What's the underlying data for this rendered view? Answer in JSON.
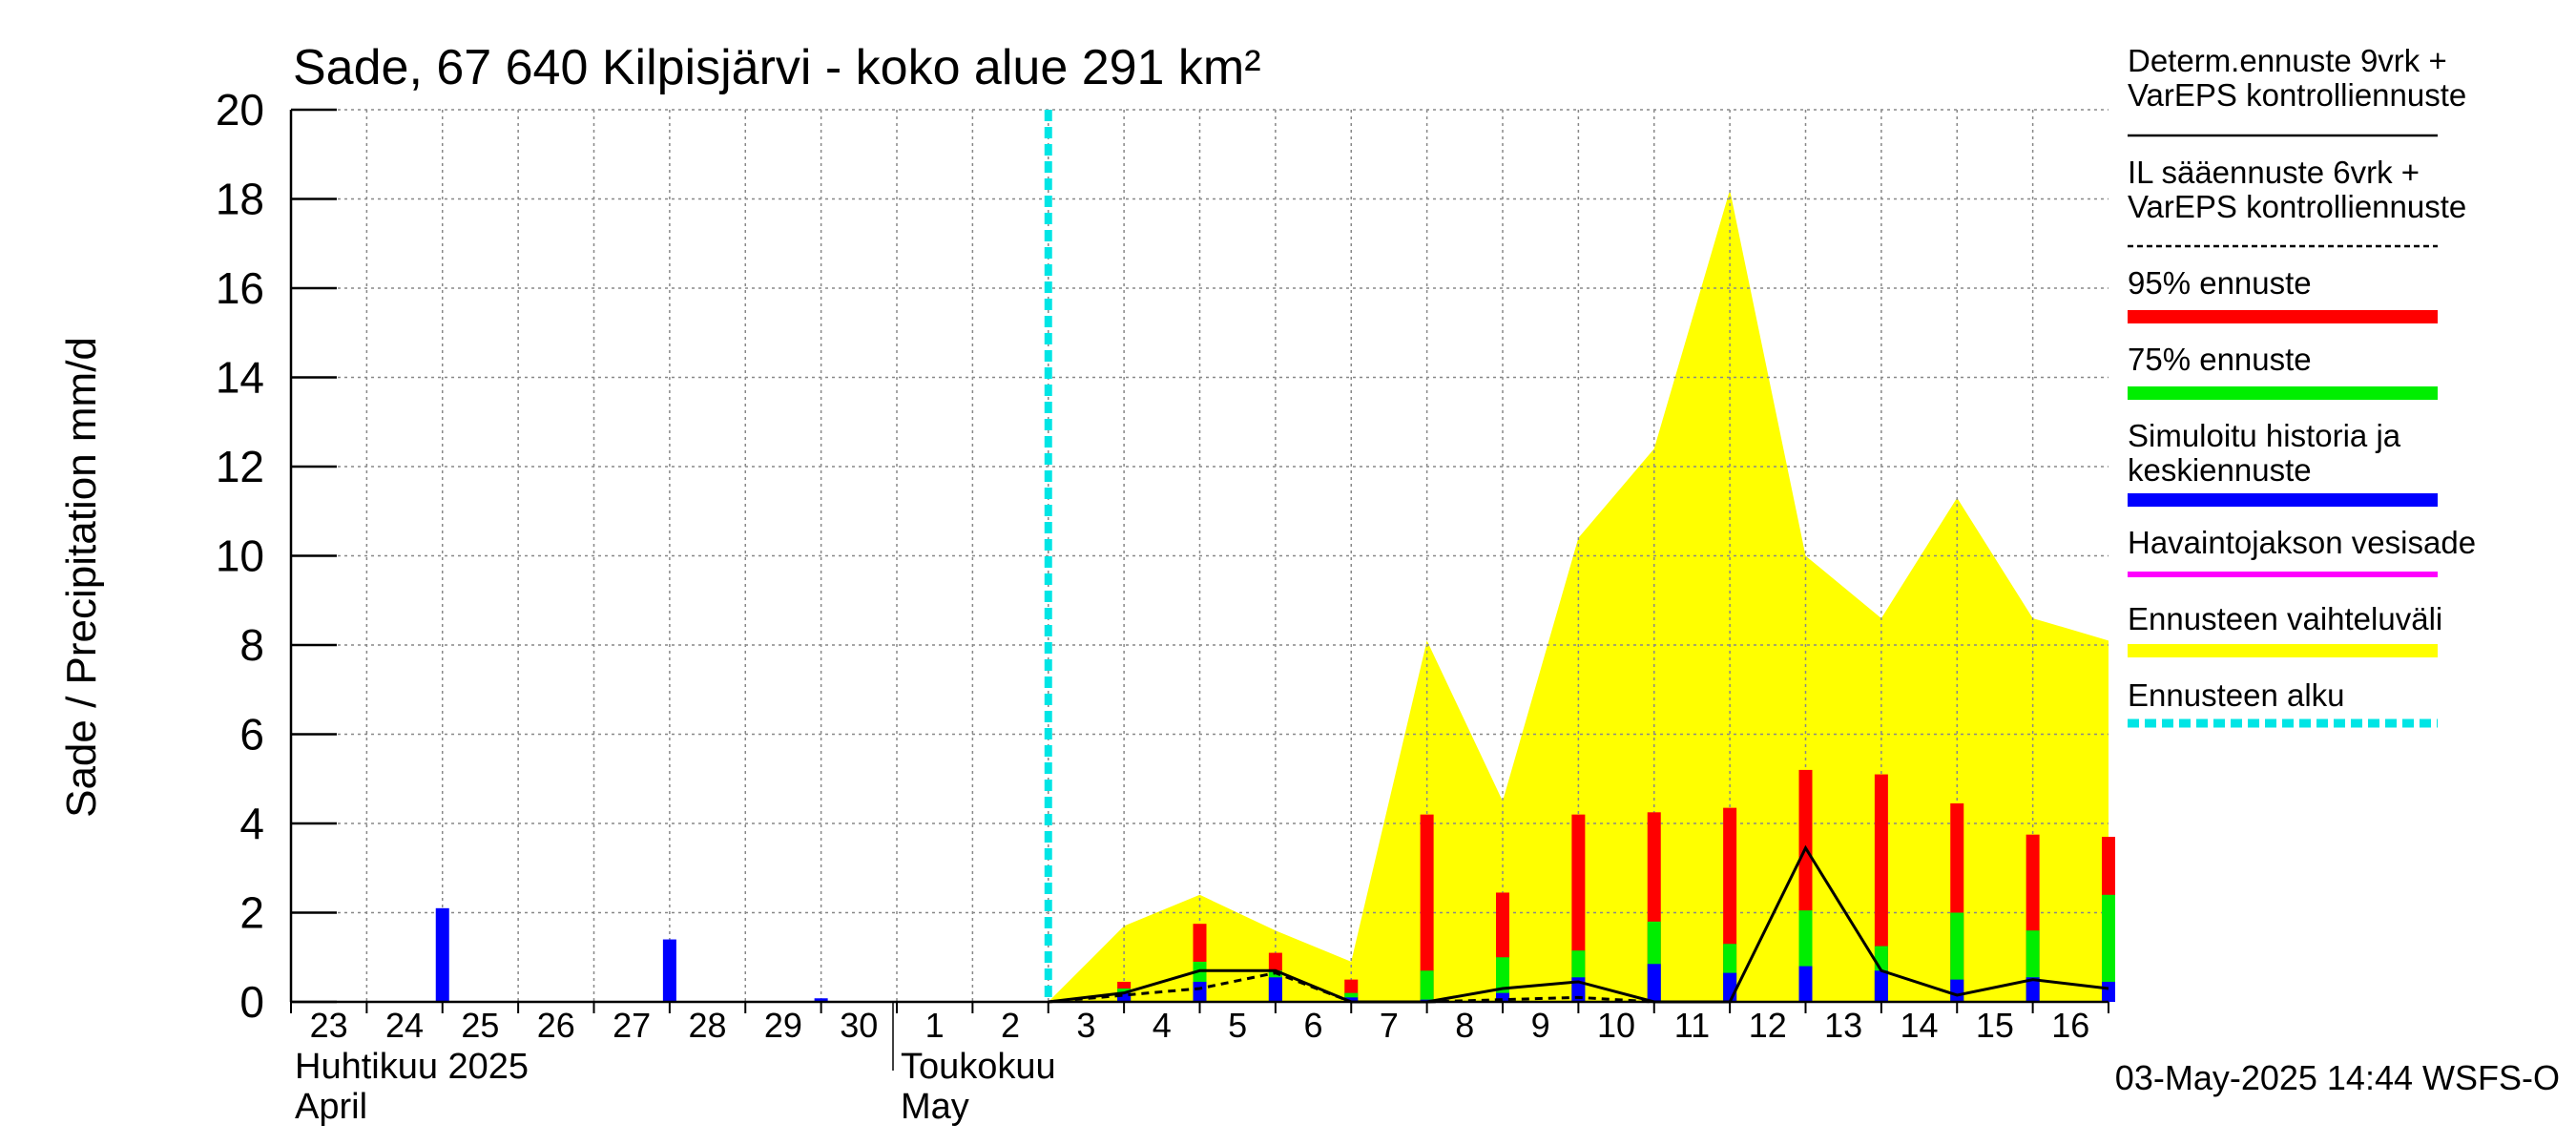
{
  "chart_data": {
    "type": "bar",
    "title": "Sade, 67 640 Kilpisjärvi - koko alue 291 km²",
    "ylabel": "Sade / Precipitation   mm/d",
    "ylim": [
      0,
      20
    ],
    "yticks": [
      0,
      2,
      4,
      6,
      8,
      10,
      12,
      14,
      16,
      18,
      20
    ],
    "x_day_labels": [
      "23",
      "24",
      "25",
      "26",
      "27",
      "28",
      "29",
      "30",
      "1",
      "2",
      "3",
      "4",
      "5",
      "6",
      "7",
      "8",
      "9",
      "10",
      "11",
      "12",
      "13",
      "14",
      "15",
      "16"
    ],
    "month_labels": [
      {
        "line1": "Huhtikuu  2025",
        "line2": "April"
      },
      {
        "line1": "Toukokuu",
        "line2": "May"
      }
    ],
    "forecast_start_day": 10,
    "history_bars": [
      {
        "day": 2,
        "value": 2.1
      },
      {
        "day": 5,
        "value": 1.4
      },
      {
        "day": 7,
        "value": 0.08
      }
    ],
    "forecast_bars": [
      {
        "day": 11,
        "blue": 0.2,
        "green": 0.3,
        "red": 0.45
      },
      {
        "day": 12,
        "blue": 0.45,
        "green": 0.9,
        "red": 1.75
      },
      {
        "day": 13,
        "blue": 0.55,
        "green": 0.7,
        "red": 1.1
      },
      {
        "day": 14,
        "blue": 0.1,
        "green": 0.2,
        "red": 0.5
      },
      {
        "day": 15,
        "blue": 0.05,
        "green": 0.7,
        "red": 4.2
      },
      {
        "day": 16,
        "blue": 0.2,
        "green": 1.0,
        "red": 2.45
      },
      {
        "day": 17,
        "blue": 0.55,
        "green": 1.15,
        "red": 4.2
      },
      {
        "day": 18,
        "blue": 0.85,
        "green": 1.8,
        "red": 4.25
      },
      {
        "day": 19,
        "blue": 0.65,
        "green": 1.3,
        "red": 4.35
      },
      {
        "day": 20,
        "blue": 0.8,
        "green": 2.05,
        "red": 5.2
      },
      {
        "day": 21,
        "blue": 0.7,
        "green": 1.25,
        "red": 5.1
      },
      {
        "day": 22,
        "blue": 0.5,
        "green": 2.0,
        "red": 4.45
      },
      {
        "day": 23,
        "blue": 0.55,
        "green": 1.6,
        "red": 3.75
      },
      {
        "day": 24,
        "blue": 0.45,
        "green": 2.4,
        "red": 3.7
      }
    ],
    "range_band": [
      {
        "day": 10,
        "value": 0
      },
      {
        "day": 11,
        "value": 1.7
      },
      {
        "day": 12,
        "value": 2.4
      },
      {
        "day": 13,
        "value": 1.6
      },
      {
        "day": 14,
        "value": 0.9
      },
      {
        "day": 15,
        "value": 8.1
      },
      {
        "day": 16,
        "value": 4.5
      },
      {
        "day": 17,
        "value": 10.4
      },
      {
        "day": 18,
        "value": 12.4
      },
      {
        "day": 19,
        "value": 18.2
      },
      {
        "day": 20,
        "value": 10.0
      },
      {
        "day": 21,
        "value": 8.6
      },
      {
        "day": 22,
        "value": 11.3
      },
      {
        "day": 23,
        "value": 8.6
      },
      {
        "day": 24,
        "value": 8.1
      }
    ],
    "deterministic_line": [
      {
        "day": 10,
        "value": 0
      },
      {
        "day": 11,
        "value": 0.2
      },
      {
        "day": 12,
        "value": 0.7
      },
      {
        "day": 13,
        "value": 0.7
      },
      {
        "day": 14,
        "value": 0
      },
      {
        "day": 15,
        "value": 0
      },
      {
        "day": 16,
        "value": 0.3
      },
      {
        "day": 17,
        "value": 0.45
      },
      {
        "day": 18,
        "value": 0
      },
      {
        "day": 19,
        "value": 0
      },
      {
        "day": 20,
        "value": 3.45
      },
      {
        "day": 21,
        "value": 0.7
      },
      {
        "day": 22,
        "value": 0.15
      },
      {
        "day": 23,
        "value": 0.5
      },
      {
        "day": 24,
        "value": 0.3
      }
    ],
    "il_forecast_line": [
      {
        "day": 10,
        "value": 0
      },
      {
        "day": 11,
        "value": 0.15
      },
      {
        "day": 12,
        "value": 0.3
      },
      {
        "day": 13,
        "value": 0.65
      },
      {
        "day": 14,
        "value": 0
      },
      {
        "day": 15,
        "value": 0
      },
      {
        "day": 16,
        "value": 0.05
      },
      {
        "day": 17,
        "value": 0.1
      },
      {
        "day": 18,
        "value": 0
      }
    ],
    "legend": [
      {
        "label_lines": [
          "Determ.ennuste 9vrk  +",
          "VarEPS kontrolliennuste"
        ],
        "color": "#000000",
        "style": "solid-thin"
      },
      {
        "label_lines": [
          "IL sääennuste 6vrk  +",
          "  VarEPS kontrolliennuste"
        ],
        "color": "#000000",
        "style": "dashed-thin"
      },
      {
        "label_lines": [
          "95% ennuste"
        ],
        "color": "#ff0000",
        "style": "thick"
      },
      {
        "label_lines": [
          "75% ennuste"
        ],
        "color": "#00ee00",
        "style": "thick"
      },
      {
        "label_lines": [
          "Simuloitu historia ja",
          "keskiennuste"
        ],
        "color": "#0000ff",
        "style": "thick"
      },
      {
        "label_lines": [
          "Havaintojakson vesisade"
        ],
        "color": "#ff00ff",
        "style": "medium"
      },
      {
        "label_lines": [
          "Ennusteen vaihteluväli"
        ],
        "color": "#ffff00",
        "style": "thick"
      },
      {
        "label_lines": [
          "Ennusteen alku"
        ],
        "color": "#00e5e5",
        "style": "dotted-thick"
      }
    ],
    "footer": "03-May-2025 14:44 WSFS-O",
    "colors": {
      "history": "#0000ff",
      "p95": "#ff0000",
      "p75": "#00ee00",
      "mean": "#0000ff",
      "band": "#ffff00",
      "forecast_start": "#00e5e5",
      "grid": "#888888"
    }
  }
}
